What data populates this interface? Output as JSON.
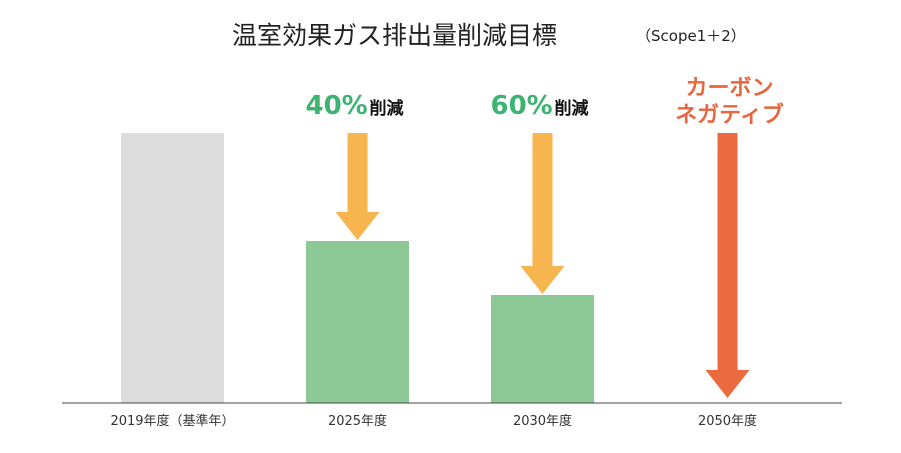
{
  "chart_data": {
    "type": "bar",
    "title": "温室効果ガス排出量削減目標",
    "subtitle": "（Scope1＋2）",
    "categories": [
      "2019年度（基準年）",
      "2025年度",
      "2030年度",
      "2050年度"
    ],
    "values": [
      100,
      60,
      40,
      0
    ],
    "xlabel": "",
    "ylabel": "",
    "ylim": [
      0,
      100
    ],
    "grid": false,
    "legend": "none",
    "annotations": [
      {
        "category": "2025年度",
        "value_text": "40%",
        "text": "削減",
        "color": "#3cb371"
      },
      {
        "category": "2030年度",
        "value_text": "60%",
        "text": "削減",
        "color": "#3cb371"
      },
      {
        "category": "2050年度",
        "lines": [
          "カーボン",
          "ネガティブ"
        ],
        "color": "#e8663d"
      }
    ]
  },
  "colors": {
    "baseline_bar": "#dcdcdc",
    "reduction_bar": "#8cc996",
    "reduction_arrow": "#f7b54f",
    "negative_arrow": "#ec6a40",
    "axis": "#444444",
    "percent_text": "#3cb371",
    "negative_text": "#e8663d"
  }
}
